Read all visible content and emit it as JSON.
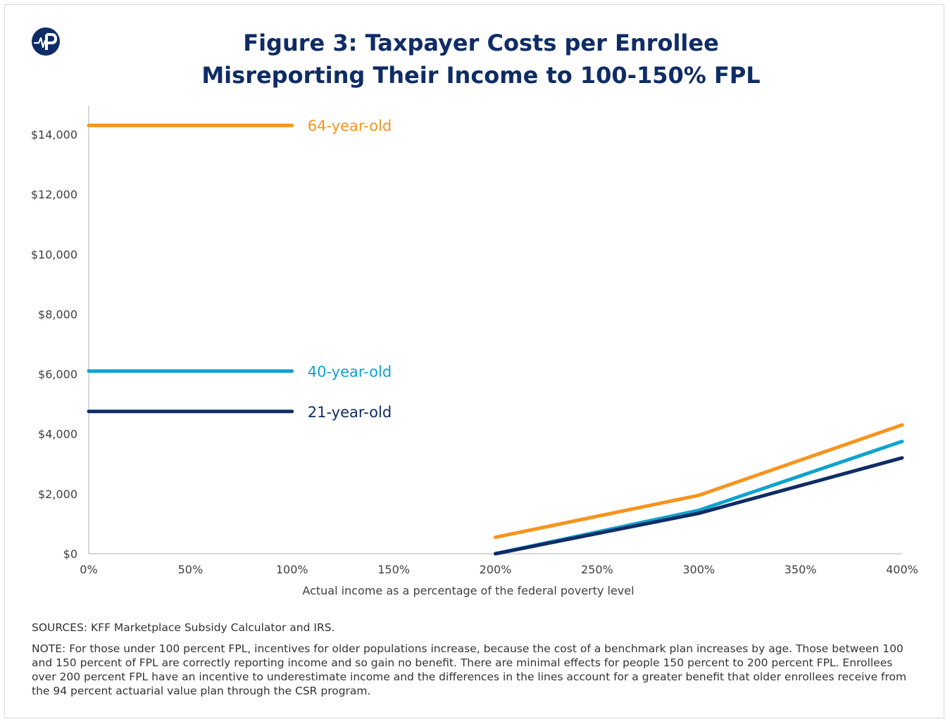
{
  "title": {
    "line1": "Figure 3: Taxpayer Costs per Enrollee",
    "line2": "Misreporting Their Income to 100-150% FPL"
  },
  "logo": {
    "icon": "paragon-p-logo-icon",
    "color": "#0f2c66"
  },
  "chart_data": {
    "type": "line",
    "xlabel": "Actual income as a percentage of the federal poverty level",
    "ylabel": "",
    "xlim": [
      0,
      400
    ],
    "ylim": [
      0,
      15000
    ],
    "x_ticks": [
      0,
      50,
      100,
      150,
      200,
      250,
      300,
      350,
      400
    ],
    "x_tick_labels": [
      "0%",
      "50%",
      "100%",
      "150%",
      "200%",
      "250%",
      "300%",
      "350%",
      "400%"
    ],
    "y_ticks": [
      0,
      2000,
      4000,
      6000,
      8000,
      10000,
      12000,
      14000
    ],
    "y_tick_labels": [
      "$0",
      "$2,000",
      "$4,000",
      "$6,000",
      "$8,000",
      "$10,000",
      "$12,000",
      "$14,000"
    ],
    "grid": false,
    "legend": "inline labels",
    "series": [
      {
        "name": "64-year-old",
        "color": "#f7941d",
        "segments": [
          [
            [
              0,
              14300
            ],
            [
              100,
              14300
            ]
          ],
          [
            [
              200,
              550
            ],
            [
              300,
              1950
            ],
            [
              400,
              4300
            ]
          ]
        ]
      },
      {
        "name": "40-year-old",
        "color": "#0fa3cf",
        "segments": [
          [
            [
              0,
              6100
            ],
            [
              100,
              6100
            ]
          ],
          [
            [
              200,
              0
            ],
            [
              300,
              1450
            ],
            [
              400,
              3750
            ]
          ]
        ]
      },
      {
        "name": "21-year-old",
        "color": "#0f2c66",
        "segments": [
          [
            [
              0,
              4750
            ],
            [
              100,
              4750
            ]
          ],
          [
            [
              200,
              0
            ],
            [
              300,
              1350
            ],
            [
              400,
              3200
            ]
          ]
        ]
      }
    ]
  },
  "footer": {
    "sources": "SOURCES: KFF Marketplace Subsidy Calculator and IRS.",
    "note": "NOTE: For those under 100 percent FPL, incentives for older populations increase, because the cost of a benchmark plan increases by age. Those between 100 and 150 percent of FPL are correctly reporting income and so gain no benefit. There are minimal effects for people 150 percent to 200 percent FPL. Enrollees over 200 percent FPL have an incentive to underestimate income and the differences in the lines account for a greater benefit that older enrollees receive from the 94 percent actuarial value plan through the CSR program."
  }
}
